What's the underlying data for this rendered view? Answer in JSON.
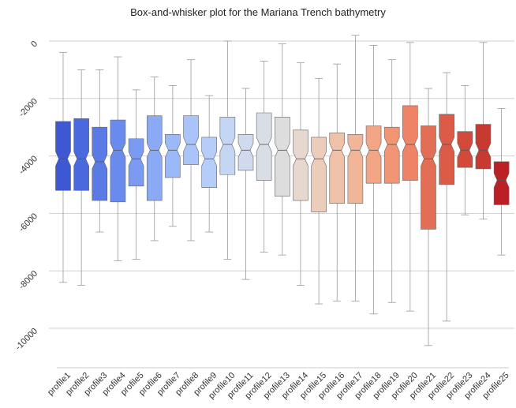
{
  "chart_data": {
    "type": "box",
    "title": "Box-and-whisker plot for the Mariana Trench bathymetry",
    "xlabel": "",
    "ylabel": "",
    "ylim": [
      -10700,
      200
    ],
    "yticks": [
      0,
      -2000,
      -4000,
      -6000,
      -8000,
      -10000
    ],
    "grid": true,
    "notched": true,
    "categories": [
      "profile1",
      "profile2",
      "profile3",
      "profile4",
      "profile5",
      "profile6",
      "profile7",
      "profile8",
      "profile9",
      "profile10",
      "profile11",
      "profile12",
      "profile13",
      "profile14",
      "profile15",
      "profile16",
      "profile17",
      "profile18",
      "profile19",
      "profile20",
      "profile21",
      "profile22",
      "profile23",
      "profile24",
      "profile25"
    ],
    "colors": [
      "#3e57d2",
      "#4b69de",
      "#5a7be6",
      "#6a8bee",
      "#7b9bf3",
      "#8aaaf6",
      "#9bb8f9",
      "#aac4fb",
      "#b7cdf9",
      "#c4d6f4",
      "#cfdaee",
      "#d8dde6",
      "#dddddd",
      "#e6d7cf",
      "#ecccbb",
      "#efc1a8",
      "#f1b597",
      "#f2a685",
      "#f29575",
      "#ef8366",
      "#e26e56",
      "#db5b47",
      "#d34a3b",
      "#c73a31",
      "#bb2027"
    ],
    "boxes": [
      {
        "whisker_high": -400,
        "q3": -2800,
        "median": -4100,
        "q1": -5200,
        "whisker_low": -8400
      },
      {
        "whisker_high": -1000,
        "q3": -2700,
        "median": -4100,
        "q1": -5200,
        "whisker_low": -8500
      },
      {
        "whisker_high": -1000,
        "q3": -3000,
        "median": -4200,
        "q1": -5550,
        "whisker_low": -6650
      },
      {
        "whisker_high": -550,
        "q3": -2750,
        "median": -3800,
        "q1": -5600,
        "whisker_low": -7650
      },
      {
        "whisker_high": -1700,
        "q3": -3400,
        "median": -4100,
        "q1": -5050,
        "whisker_low": -7600
      },
      {
        "whisker_high": -1250,
        "q3": -2600,
        "median": -3800,
        "q1": -5550,
        "whisker_low": -6950
      },
      {
        "whisker_high": -1550,
        "q3": -3250,
        "median": -3800,
        "q1": -4750,
        "whisker_low": -6450
      },
      {
        "whisker_high": -650,
        "q3": -2600,
        "median": -3600,
        "q1": -4300,
        "whisker_low": -6950
      },
      {
        "whisker_high": -1900,
        "q3": -3350,
        "median": -4100,
        "q1": -5100,
        "whisker_low": -6650
      },
      {
        "whisker_high": 0,
        "q3": -2650,
        "median": -3600,
        "q1": -4650,
        "whisker_low": -7600
      },
      {
        "whisker_high": -1650,
        "q3": -3250,
        "median": -3800,
        "q1": -4500,
        "whisker_low": -8300
      },
      {
        "whisker_high": -700,
        "q3": -2500,
        "median": -3600,
        "q1": -4850,
        "whisker_low": -7350
      },
      {
        "whisker_high": -100,
        "q3": -2650,
        "median": -3800,
        "q1": -5400,
        "whisker_low": -7450
      },
      {
        "whisker_high": -750,
        "q3": -3100,
        "median": -4100,
        "q1": -5550,
        "whisker_low": -8500
      },
      {
        "whisker_high": -1300,
        "q3": -3350,
        "median": -4100,
        "q1": -5950,
        "whisker_low": -9150
      },
      {
        "whisker_high": -800,
        "q3": -3200,
        "median": -3800,
        "q1": -5650,
        "whisker_low": -9050
      },
      {
        "whisker_high": 200,
        "q3": -3250,
        "median": -3800,
        "q1": -5650,
        "whisker_low": -9050
      },
      {
        "whisker_high": -150,
        "q3": -2950,
        "median": -3800,
        "q1": -4950,
        "whisker_low": -9500
      },
      {
        "whisker_high": -650,
        "q3": -3000,
        "median": -3600,
        "q1": -4950,
        "whisker_low": -9100
      },
      {
        "whisker_high": -50,
        "q3": -2250,
        "median": -3600,
        "q1": -4850,
        "whisker_low": -9400
      },
      {
        "whisker_high": -1650,
        "q3": -2950,
        "median": -4100,
        "q1": -6550,
        "whisker_low": -10600
      },
      {
        "whisker_high": -1100,
        "q3": -2550,
        "median": -3600,
        "q1": -5000,
        "whisker_low": -9750
      },
      {
        "whisker_high": -1550,
        "q3": -3150,
        "median": -3800,
        "q1": -4400,
        "whisker_low": -6050
      },
      {
        "whisker_high": -50,
        "q3": -2900,
        "median": -3800,
        "q1": -4450,
        "whisker_low": -6200
      },
      {
        "whisker_high": -2350,
        "q3": -4200,
        "median": -4850,
        "q1": -5700,
        "whisker_low": -7450
      }
    ]
  }
}
